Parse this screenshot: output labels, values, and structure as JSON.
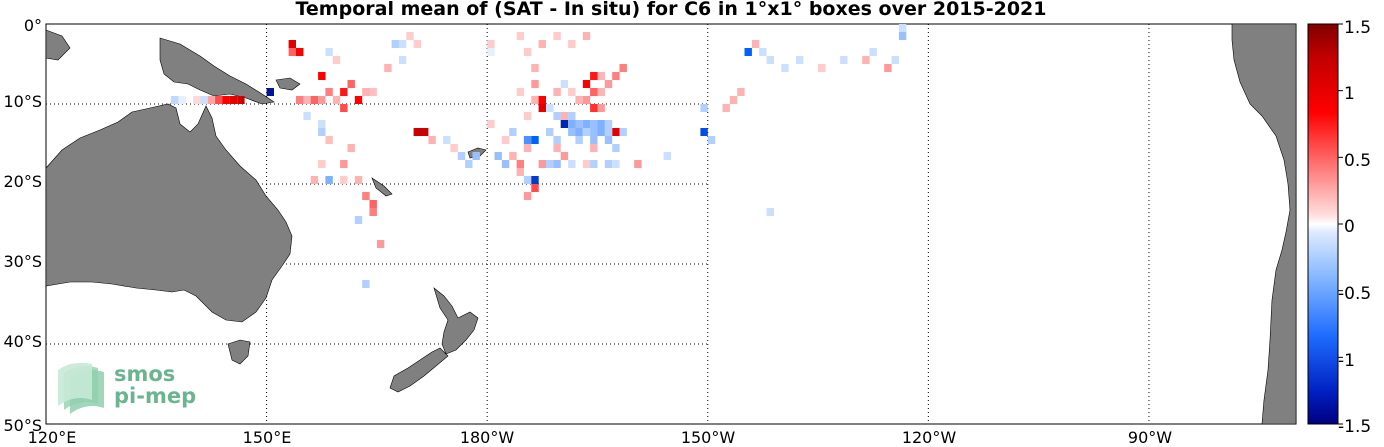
{
  "title": "Temporal mean of (SAT - In situ) for C6 in 1°x1° boxes over 2015-2021",
  "map": {
    "projection": "equirectangular",
    "lon_range": [
      120,
      290
    ],
    "lat_range": [
      -50,
      0
    ],
    "land_color": "#808080",
    "ocean_color": "#ffffff",
    "gridline_style": "dotted",
    "lat_labels": [
      "0°",
      "10°S",
      "20°S",
      "30°S",
      "40°S",
      "50°S"
    ],
    "lon_labels": [
      "120°E",
      "150°E",
      "180°W",
      "150°W",
      "120°W",
      "90°W"
    ]
  },
  "colorbar": {
    "range": [
      -1.5,
      1.5
    ],
    "tick_labels": [
      "1.5",
      "1",
      "0.5",
      "0",
      "-0.5",
      "-1",
      "-1.5"
    ],
    "colormap": "diverging blue-white-red",
    "positive_color": "#ff0000",
    "negative_color": "#0060ff",
    "extreme_positive_color": "#800000",
    "extreme_negative_color": "#000080"
  },
  "logo": {
    "line1": "smos",
    "line2": "pi-mep",
    "color": "#6ab58f"
  },
  "chart_data": {
    "type": "heatmap",
    "title": "Temporal mean of (SAT - In situ) for C6 in 1°x1° boxes over 2015-2021",
    "xlabel": "",
    "ylabel": "",
    "xlim": [
      120,
      290
    ],
    "ylim": [
      -50,
      0
    ],
    "value_range": [
      -1.5,
      1.5
    ],
    "cells": [
      {
        "lon": 137.5,
        "lat": -9.5,
        "v": -0.25
      },
      {
        "lon": 138.5,
        "lat": -9.5,
        "v": -0.1
      },
      {
        "lon": 140.5,
        "lat": -9.5,
        "v": 0.15
      },
      {
        "lon": 141.5,
        "lat": -9.5,
        "v": -0.2
      },
      {
        "lon": 142.5,
        "lat": -9.5,
        "v": 0.35
      },
      {
        "lon": 143.5,
        "lat": -9.5,
        "v": 0.7
      },
      {
        "lon": 144.5,
        "lat": -9.5,
        "v": 1.0
      },
      {
        "lon": 145.5,
        "lat": -9.5,
        "v": 1.1
      },
      {
        "lon": 146.5,
        "lat": -9.5,
        "v": 1.2
      },
      {
        "lon": 150.5,
        "lat": -8.5,
        "v": -1.4
      },
      {
        "lon": 154.5,
        "lat": -9.5,
        "v": 0.5
      },
      {
        "lon": 155.5,
        "lat": -9.5,
        "v": 0.3
      },
      {
        "lon": 156.5,
        "lat": -9.5,
        "v": 0.6
      },
      {
        "lon": 157.5,
        "lat": -9.5,
        "v": 0.4
      },
      {
        "lon": 153.5,
        "lat": -2.5,
        "v": 1.1
      },
      {
        "lon": 153.5,
        "lat": -3.5,
        "v": 0.6
      },
      {
        "lon": 154.5,
        "lat": -3.5,
        "v": 1.0
      },
      {
        "lon": 157.5,
        "lat": -6.5,
        "v": 1.0
      },
      {
        "lon": 158.5,
        "lat": -8.5,
        "v": 0.5
      },
      {
        "lon": 160.5,
        "lat": -8.5,
        "v": 0.9
      },
      {
        "lon": 161.5,
        "lat": -7.5,
        "v": 0.6
      },
      {
        "lon": 162.5,
        "lat": -9.5,
        "v": 1.0
      },
      {
        "lon": 163.5,
        "lat": -8.5,
        "v": 0.3
      },
      {
        "lon": 159.5,
        "lat": -9.5,
        "v": 0.3
      },
      {
        "lon": 160.5,
        "lat": -10.5,
        "v": 0.7
      },
      {
        "lon": 158.5,
        "lat": -3.5,
        "v": -0.2
      },
      {
        "lon": 159.5,
        "lat": -4.5,
        "v": 0.2
      },
      {
        "lon": 167.5,
        "lat": -2.5,
        "v": -0.3
      },
      {
        "lon": 168.5,
        "lat": -2.5,
        "v": -0.2
      },
      {
        "lon": 169.5,
        "lat": -1.5,
        "v": 0.2
      },
      {
        "lon": 170.5,
        "lat": -2.5,
        "v": 0.2
      },
      {
        "lon": 168.5,
        "lat": -4.5,
        "v": -0.2
      },
      {
        "lon": 166.5,
        "lat": -5.5,
        "v": 0.3
      },
      {
        "lon": 164.5,
        "lat": -8.5,
        "v": 0.25
      },
      {
        "lon": 157.5,
        "lat": -12.5,
        "v": -0.2
      },
      {
        "lon": 157.5,
        "lat": -13.5,
        "v": -0.3
      },
      {
        "lon": 155.5,
        "lat": -11.5,
        "v": -0.2
      },
      {
        "lon": 158.5,
        "lat": -14.5,
        "v": 0.25
      },
      {
        "lon": 161.5,
        "lat": -15.5,
        "v": 0.3
      },
      {
        "lon": 160.5,
        "lat": -17.5,
        "v": 0.4
      },
      {
        "lon": 157.5,
        "lat": -17.5,
        "v": 0.2
      },
      {
        "lon": 156.5,
        "lat": -19.5,
        "v": 0.3
      },
      {
        "lon": 158.5,
        "lat": -19.5,
        "v": -0.5
      },
      {
        "lon": 160.5,
        "lat": -19.5,
        "v": 0.2
      },
      {
        "lon": 162.5,
        "lat": -19.5,
        "v": 0.3
      },
      {
        "lon": 163.5,
        "lat": -21.5,
        "v": 0.5
      },
      {
        "lon": 164.5,
        "lat": -22.5,
        "v": 0.6
      },
      {
        "lon": 164.5,
        "lat": -23.5,
        "v": 0.5
      },
      {
        "lon": 162.5,
        "lat": -24.5,
        "v": -0.3
      },
      {
        "lon": 165.5,
        "lat": -27.5,
        "v": 0.4
      },
      {
        "lon": 163.5,
        "lat": -32.5,
        "v": -0.3
      },
      {
        "lon": 170.5,
        "lat": -13.5,
        "v": 1.2
      },
      {
        "lon": 171.5,
        "lat": -13.5,
        "v": 1.2
      },
      {
        "lon": 172.5,
        "lat": -14.5,
        "v": 0.3
      },
      {
        "lon": 174.5,
        "lat": -14.5,
        "v": -0.2
      },
      {
        "lon": 175.5,
        "lat": -15.5,
        "v": 0.2
      },
      {
        "lon": 176.5,
        "lat": -16.5,
        "v": -0.3
      },
      {
        "lon": 177.5,
        "lat": -17.5,
        "v": -0.3
      },
      {
        "lon": 178.5,
        "lat": -16.5,
        "v": -0.4
      },
      {
        "lon": 180.5,
        "lat": -2.5,
        "v": 0.2
      },
      {
        "lon": 180.5,
        "lat": -3.5,
        "v": -0.1
      },
      {
        "lon": 184.5,
        "lat": -1.5,
        "v": 0.2
      },
      {
        "lon": 187.5,
        "lat": -2.5,
        "v": 0.3
      },
      {
        "lon": 189.5,
        "lat": -1.5,
        "v": 0.2
      },
      {
        "lon": 186.5,
        "lat": -5.5,
        "v": 0.3
      },
      {
        "lon": 186.5,
        "lat": -7.5,
        "v": 0.4
      },
      {
        "lon": 186.5,
        "lat": -9.5,
        "v": 0.3
      },
      {
        "lon": 188.5,
        "lat": -10.5,
        "v": -0.2
      },
      {
        "lon": 184.5,
        "lat": -8.5,
        "v": 0.2
      },
      {
        "lon": 187.5,
        "lat": -9.5,
        "v": 1.0
      },
      {
        "lon": 187.5,
        "lat": -10.5,
        "v": 1.1
      },
      {
        "lon": 185.5,
        "lat": -11.5,
        "v": 0.2
      },
      {
        "lon": 183.5,
        "lat": -13.5,
        "v": -0.3
      },
      {
        "lon": 182.5,
        "lat": -14.5,
        "v": 0.2
      },
      {
        "lon": 180.5,
        "lat": -12.5,
        "v": 0.2
      },
      {
        "lon": 181.5,
        "lat": -16.5,
        "v": -0.4
      },
      {
        "lon": 183.5,
        "lat": -16.5,
        "v": 0.3
      },
      {
        "lon": 184.5,
        "lat": -17.5,
        "v": 0.5
      },
      {
        "lon": 182.5,
        "lat": -17.5,
        "v": -0.4
      },
      {
        "lon": 185.5,
        "lat": -15.5,
        "v": 0.3
      },
      {
        "lon": 185.5,
        "lat": -14.5,
        "v": -0.7
      },
      {
        "lon": 186.5,
        "lat": -14.5,
        "v": -1.0
      },
      {
        "lon": 187.5,
        "lat": -17.5,
        "v": 0.4
      },
      {
        "lon": 188.5,
        "lat": -17.5,
        "v": -0.3
      },
      {
        "lon": 189.5,
        "lat": -17.5,
        "v": -0.4
      },
      {
        "lon": 190.5,
        "lat": -16.5,
        "v": 0.4
      },
      {
        "lon": 185.5,
        "lat": -19.5,
        "v": -0.3
      },
      {
        "lon": 186.5,
        "lat": -19.5,
        "v": -1.2
      },
      {
        "lon": 186.5,
        "lat": -20.5,
        "v": 0.7
      },
      {
        "lon": 185.5,
        "lat": -21.5,
        "v": 0.4
      },
      {
        "lon": 184.5,
        "lat": -18.5,
        "v": 0.3
      },
      {
        "lon": 189.5,
        "lat": -11.5,
        "v": -0.3
      },
      {
        "lon": 190.5,
        "lat": -11.5,
        "v": 0.3
      },
      {
        "lon": 191.5,
        "lat": -11.5,
        "v": -0.3
      },
      {
        "lon": 190.5,
        "lat": -12.5,
        "v": -1.3
      },
      {
        "lon": 191.5,
        "lat": -12.5,
        "v": -0.5
      },
      {
        "lon": 192.5,
        "lat": -12.5,
        "v": -0.4
      },
      {
        "lon": 193.5,
        "lat": -12.5,
        "v": -0.5
      },
      {
        "lon": 194.5,
        "lat": -12.5,
        "v": -0.4
      },
      {
        "lon": 195.5,
        "lat": -12.5,
        "v": -0.5
      },
      {
        "lon": 196.5,
        "lat": -12.5,
        "v": -0.3
      },
      {
        "lon": 197.5,
        "lat": -13.5,
        "v": 1.1
      },
      {
        "lon": 198.5,
        "lat": -13.5,
        "v": -0.3
      },
      {
        "lon": 191.5,
        "lat": -13.5,
        "v": -0.4
      },
      {
        "lon": 192.5,
        "lat": -13.5,
        "v": -0.5
      },
      {
        "lon": 193.5,
        "lat": -13.5,
        "v": -0.3
      },
      {
        "lon": 194.5,
        "lat": -13.5,
        "v": -0.4
      },
      {
        "lon": 195.5,
        "lat": -13.5,
        "v": -0.5
      },
      {
        "lon": 196.5,
        "lat": -13.5,
        "v": -0.3
      },
      {
        "lon": 192.5,
        "lat": -14.5,
        "v": -0.3
      },
      {
        "lon": 194.5,
        "lat": -14.5,
        "v": -0.4
      },
      {
        "lon": 196.5,
        "lat": -14.5,
        "v": -0.4
      },
      {
        "lon": 194.5,
        "lat": -15.5,
        "v": 0.3
      },
      {
        "lon": 197.5,
        "lat": -15.5,
        "v": -0.3
      },
      {
        "lon": 189.5,
        "lat": -14.5,
        "v": -0.3
      },
      {
        "lon": 189.5,
        "lat": -15.5,
        "v": 0.3
      },
      {
        "lon": 188.5,
        "lat": -13.5,
        "v": -0.3
      },
      {
        "lon": 191.5,
        "lat": -17.5,
        "v": -0.2
      },
      {
        "lon": 193.5,
        "lat": -17.5,
        "v": 0.2
      },
      {
        "lon": 194.5,
        "lat": -17.5,
        "v": -0.3
      },
      {
        "lon": 196.5,
        "lat": -17.5,
        "v": -0.3
      },
      {
        "lon": 197.5,
        "lat": -17.5,
        "v": -0.2
      },
      {
        "lon": 192.5,
        "lat": -9.5,
        "v": 0.3
      },
      {
        "lon": 193.5,
        "lat": -9.5,
        "v": 0.4
      },
      {
        "lon": 194.5,
        "lat": -10.5,
        "v": 0.8
      },
      {
        "lon": 194.5,
        "lat": -8.5,
        "v": 0.6
      },
      {
        "lon": 195.5,
        "lat": -8.5,
        "v": 0.3
      },
      {
        "lon": 196.5,
        "lat": -7.5,
        "v": 0.4
      },
      {
        "lon": 195.5,
        "lat": -6.5,
        "v": 0.3
      },
      {
        "lon": 193.5,
        "lat": -7.5,
        "v": 1.0
      },
      {
        "lon": 194.5,
        "lat": -6.5,
        "v": 0.9
      },
      {
        "lon": 195.5,
        "lat": -10.5,
        "v": 0.4
      },
      {
        "lon": 189.5,
        "lat": -8.5,
        "v": 0.3
      },
      {
        "lon": 190.5,
        "lat": -7.5,
        "v": -0.2
      },
      {
        "lon": 191.5,
        "lat": -8.5,
        "v": 0.2
      },
      {
        "lon": 197.5,
        "lat": -6.5,
        "v": 0.5
      },
      {
        "lon": 198.5,
        "lat": -5.5,
        "v": 0.5
      },
      {
        "lon": 191.5,
        "lat": -2.5,
        "v": 0.2
      },
      {
        "lon": 193.5,
        "lat": -1.5,
        "v": 0.3
      },
      {
        "lon": 185.5,
        "lat": -3.5,
        "v": 0.2
      },
      {
        "lon": 200.5,
        "lat": -17.5,
        "v": 0.4
      },
      {
        "lon": 204.5,
        "lat": -16.5,
        "v": -0.2
      },
      {
        "lon": 209.5,
        "lat": -10.5,
        "v": -0.3
      },
      {
        "lon": 209.5,
        "lat": -13.5,
        "v": -1.1
      },
      {
        "lon": 210.5,
        "lat": -14.5,
        "v": -0.3
      },
      {
        "lon": 212.5,
        "lat": -10.5,
        "v": 0.3
      },
      {
        "lon": 213.5,
        "lat": -9.5,
        "v": 0.3
      },
      {
        "lon": 214.5,
        "lat": -8.5,
        "v": 0.3
      },
      {
        "lon": 215.5,
        "lat": -3.5,
        "v": -1.0
      },
      {
        "lon": 216.5,
        "lat": -2.5,
        "v": 0.3
      },
      {
        "lon": 217.5,
        "lat": -3.5,
        "v": -0.2
      },
      {
        "lon": 218.5,
        "lat": -4.5,
        "v": -0.2
      },
      {
        "lon": 220.5,
        "lat": -5.5,
        "v": -0.2
      },
      {
        "lon": 222.5,
        "lat": -4.5,
        "v": -0.2
      },
      {
        "lon": 225.5,
        "lat": -5.5,
        "v": 0.2
      },
      {
        "lon": 228.5,
        "lat": -4.5,
        "v": -0.2
      },
      {
        "lon": 231.5,
        "lat": -4.5,
        "v": 0.3
      },
      {
        "lon": 232.5,
        "lat": -3.5,
        "v": -0.2
      },
      {
        "lon": 234.5,
        "lat": -5.5,
        "v": 0.4
      },
      {
        "lon": 235.5,
        "lat": -4.5,
        "v": -0.2
      },
      {
        "lon": 236.5,
        "lat": -0.5,
        "v": -0.2
      },
      {
        "lon": 236.5,
        "lat": -1.5,
        "v": -0.4
      },
      {
        "lon": 218.5,
        "lat": -23.5,
        "v": -0.2
      }
    ]
  }
}
